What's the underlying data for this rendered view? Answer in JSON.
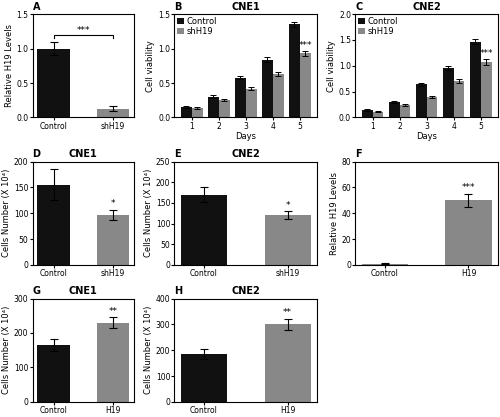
{
  "chart_data": [
    {
      "type": "bar",
      "ylabel": "Relative H19 Levels",
      "categories": [
        "Control",
        "shH19"
      ],
      "values": [
        1.0,
        0.13
      ],
      "errors": [
        0.1,
        0.03
      ],
      "colors": [
        "#111111",
        "#888888"
      ],
      "ylim": [
        0,
        1.5
      ],
      "yticks": [
        0.0,
        0.5,
        1.0,
        1.5
      ],
      "annotations": [
        {
          "text": "A",
          "kind": "panel_label"
        },
        {
          "text": "***",
          "kind": "bracket",
          "categories": [
            "Control",
            "shH19"
          ]
        }
      ]
    },
    {
      "type": "bar",
      "title": "CNE1",
      "ylabel": "Cell viability",
      "xlabel": "Days",
      "categories": [
        "1",
        "2",
        "3",
        "4",
        "5"
      ],
      "series": [
        {
          "name": "Control",
          "color": "#111111",
          "values": [
            0.155,
            0.3,
            0.58,
            0.84,
            1.35
          ],
          "errors": [
            0.018,
            0.02,
            0.025,
            0.035,
            0.04
          ]
        },
        {
          "name": "shH19",
          "color": "#888888",
          "values": [
            0.135,
            0.255,
            0.42,
            0.63,
            0.93
          ],
          "errors": [
            0.01,
            0.018,
            0.022,
            0.025,
            0.032
          ]
        }
      ],
      "ylim": [
        0.0,
        1.5
      ],
      "yticks": [
        0.0,
        0.5,
        1.0,
        1.5
      ],
      "legend": "upper left",
      "annotations": [
        {
          "text": "B",
          "kind": "panel_label"
        },
        {
          "text": "***",
          "kind": "above",
          "category": "5",
          "series": "shH19"
        }
      ]
    },
    {
      "type": "bar",
      "title": "CNE2",
      "ylabel": "Cell viability",
      "xlabel": "Days",
      "categories": [
        "1",
        "2",
        "3",
        "4",
        "5"
      ],
      "series": [
        {
          "name": "Control",
          "color": "#111111",
          "values": [
            0.14,
            0.3,
            0.64,
            0.96,
            1.47
          ],
          "errors": [
            0.018,
            0.028,
            0.035,
            0.042,
            0.055
          ]
        },
        {
          "name": "shH19",
          "color": "#888888",
          "values": [
            0.11,
            0.235,
            0.395,
            0.7,
            1.07
          ],
          "errors": [
            0.009,
            0.018,
            0.025,
            0.038,
            0.055
          ]
        }
      ],
      "ylim": [
        0.0,
        2.0
      ],
      "yticks": [
        0.0,
        0.5,
        1.0,
        1.5,
        2.0
      ],
      "legend": "upper left",
      "annotations": [
        {
          "text": "C",
          "kind": "panel_label"
        },
        {
          "text": "***",
          "kind": "above",
          "category": "5",
          "series": "shH19"
        }
      ]
    },
    {
      "type": "bar",
      "title": "CNE1",
      "ylabel": "Cells Number (X 10⁴)",
      "categories": [
        "Control",
        "shH19"
      ],
      "values": [
        155,
        97
      ],
      "errors": [
        30,
        10
      ],
      "colors": [
        "#111111",
        "#888888"
      ],
      "ylim": [
        0,
        200
      ],
      "yticks": [
        0,
        50,
        100,
        150,
        200
      ],
      "annotations": [
        {
          "text": "D",
          "kind": "panel_label"
        },
        {
          "text": "*",
          "kind": "above",
          "category": "shH19"
        }
      ]
    },
    {
      "type": "bar",
      "title": "CNE2",
      "ylabel": "Cells Number (X 10⁴)",
      "categories": [
        "Control",
        "shH19"
      ],
      "values": [
        170,
        120
      ],
      "errors": [
        18,
        10
      ],
      "colors": [
        "#111111",
        "#888888"
      ],
      "ylim": [
        0,
        250
      ],
      "yticks": [
        0,
        50,
        100,
        150,
        200,
        250
      ],
      "annotations": [
        {
          "text": "E",
          "kind": "panel_label"
        },
        {
          "text": "*",
          "kind": "above",
          "category": "shH19"
        }
      ]
    },
    {
      "type": "bar",
      "ylabel": "Relative H19 Levels",
      "categories": [
        "Control",
        "H19"
      ],
      "values": [
        1.0,
        50.0
      ],
      "errors": [
        0.15,
        5.0
      ],
      "colors": [
        "#888888",
        "#888888"
      ],
      "ylim": [
        0,
        80
      ],
      "yticks": [
        0,
        20,
        40,
        60,
        80
      ],
      "annotations": [
        {
          "text": "F",
          "kind": "panel_label"
        },
        {
          "text": "***",
          "kind": "above",
          "category": "H19"
        }
      ]
    },
    {
      "type": "bar",
      "title": "CNE1",
      "ylabel": "Cells Number (X 10⁴)",
      "categories": [
        "Control",
        "H19"
      ],
      "values": [
        165,
        230
      ],
      "errors": [
        18,
        15
      ],
      "colors": [
        "#111111",
        "#888888"
      ],
      "ylim": [
        0,
        300
      ],
      "yticks": [
        0,
        100,
        200,
        300
      ],
      "annotations": [
        {
          "text": "G",
          "kind": "panel_label"
        },
        {
          "text": "**",
          "kind": "above",
          "category": "H19"
        }
      ]
    },
    {
      "type": "bar",
      "title": "CNE2",
      "ylabel": "Cells Number (X 10⁴)",
      "categories": [
        "Control",
        "H19"
      ],
      "values": [
        185,
        300
      ],
      "errors": [
        18,
        22
      ],
      "colors": [
        "#111111",
        "#888888"
      ],
      "ylim": [
        0,
        400
      ],
      "yticks": [
        0,
        100,
        200,
        300,
        400
      ],
      "annotations": [
        {
          "text": "H",
          "kind": "panel_label"
        },
        {
          "text": "**",
          "kind": "above",
          "category": "H19"
        }
      ]
    }
  ]
}
